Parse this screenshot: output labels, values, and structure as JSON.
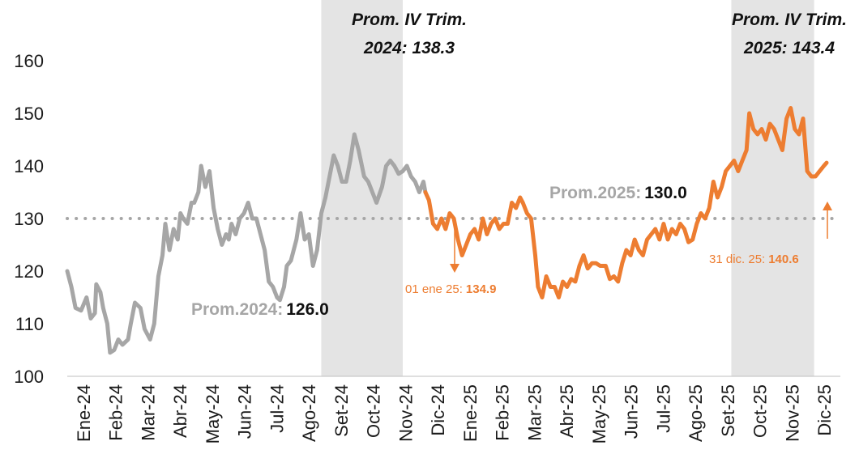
{
  "chart_data": {
    "type": "line",
    "title": "",
    "xlabel": "",
    "ylabel": "",
    "ylim": [
      100,
      160
    ],
    "y_ticks": [
      "100",
      "110",
      "120",
      "130",
      "140",
      "150",
      "160"
    ],
    "x_tick_labels": [
      "Ene-24",
      "Feb-24",
      "Mar-24",
      "Abr-24",
      "May-24",
      "Jun-24",
      "Jul-24",
      "Ago-24",
      "Set-24",
      "Oct-24",
      "Nov-24",
      "Dic-24",
      "Ene-25",
      "Feb-25",
      "Mar-25",
      "Abr-25",
      "May-25",
      "Jun-25",
      "Jul-25",
      "Ago-25",
      "Set-25",
      "Oct-25",
      "Nov-25",
      "Dic-25"
    ],
    "grid": false,
    "colors": {
      "s2024": "#a6a6a6",
      "s2025": "#ed7d31",
      "shade": "#e4e4e4",
      "avg_line": "#a6a6a6"
    },
    "series": [
      {
        "name": "2024",
        "color": "#a6a6a6",
        "points": [
          [
            0,
            120
          ],
          [
            0.15,
            117
          ],
          [
            0.3,
            113
          ],
          [
            0.5,
            112.5
          ],
          [
            0.7,
            115
          ],
          [
            0.85,
            111
          ],
          [
            1.0,
            112
          ],
          [
            1.05,
            117.5
          ],
          [
            1.2,
            116
          ],
          [
            1.3,
            113
          ],
          [
            1.45,
            110
          ],
          [
            1.55,
            104.5
          ],
          [
            1.7,
            105
          ],
          [
            1.85,
            107
          ],
          [
            2.0,
            106
          ],
          [
            2.2,
            107
          ],
          [
            2.3,
            110
          ],
          [
            2.45,
            114
          ],
          [
            2.65,
            113
          ],
          [
            2.8,
            109
          ],
          [
            3.0,
            107
          ],
          [
            3.15,
            110
          ],
          [
            3.3,
            119
          ],
          [
            3.45,
            123
          ],
          [
            3.55,
            129
          ],
          [
            3.7,
            124
          ],
          [
            3.85,
            128
          ],
          [
            4.0,
            126
          ],
          [
            4.1,
            131
          ],
          [
            4.2,
            130
          ],
          [
            4.35,
            129
          ],
          [
            4.5,
            133
          ],
          [
            4.6,
            133
          ],
          [
            4.75,
            135
          ],
          [
            4.85,
            140
          ],
          [
            5.0,
            136
          ],
          [
            5.15,
            139
          ],
          [
            5.3,
            132
          ],
          [
            5.45,
            128
          ],
          [
            5.6,
            125
          ],
          [
            5.75,
            127
          ],
          [
            5.85,
            126
          ],
          [
            5.95,
            129
          ],
          [
            6.1,
            127
          ],
          [
            6.25,
            130
          ],
          [
            6.4,
            131
          ],
          [
            6.55,
            133
          ],
          [
            6.7,
            130
          ],
          [
            6.85,
            130
          ],
          [
            7.0,
            127
          ],
          [
            7.15,
            124
          ],
          [
            7.3,
            118
          ],
          [
            7.45,
            117
          ],
          [
            7.6,
            115
          ],
          [
            7.7,
            114.5
          ],
          [
            7.85,
            117
          ],
          [
            7.95,
            121
          ],
          [
            8.1,
            122
          ],
          [
            8.3,
            126
          ],
          [
            8.45,
            131
          ],
          [
            8.6,
            126
          ],
          [
            8.75,
            127
          ],
          [
            8.9,
            121
          ],
          [
            9.05,
            124
          ],
          [
            9.2,
            131
          ],
          [
            9.35,
            134
          ],
          [
            9.5,
            138
          ],
          [
            9.65,
            142
          ],
          [
            9.8,
            140
          ],
          [
            9.95,
            137
          ],
          [
            10.1,
            137
          ],
          [
            10.25,
            141
          ],
          [
            10.4,
            146
          ],
          [
            10.55,
            143
          ],
          [
            10.75,
            138
          ],
          [
            10.9,
            137
          ],
          [
            11.05,
            135
          ],
          [
            11.2,
            133
          ],
          [
            11.4,
            136
          ],
          [
            11.55,
            140
          ],
          [
            11.7,
            141
          ],
          [
            11.85,
            140
          ],
          [
            12.0,
            138.5
          ],
          [
            12.15,
            139
          ],
          [
            12.3,
            140
          ],
          [
            12.45,
            138
          ],
          [
            12.6,
            137
          ],
          [
            12.75,
            135
          ],
          [
            12.9,
            137
          ],
          [
            12.97,
            135
          ]
        ]
      },
      {
        "name": "2025",
        "color": "#ed7d31",
        "points": [
          [
            12.97,
            135
          ],
          [
            13.1,
            133.5
          ],
          [
            13.25,
            129
          ],
          [
            13.4,
            128
          ],
          [
            13.55,
            130
          ],
          [
            13.7,
            128
          ],
          [
            13.85,
            131
          ],
          [
            14.0,
            130
          ],
          [
            14.15,
            126
          ],
          [
            14.3,
            123
          ],
          [
            14.45,
            125
          ],
          [
            14.6,
            127
          ],
          [
            14.75,
            128
          ],
          [
            14.9,
            126
          ],
          [
            15.05,
            130
          ],
          [
            15.2,
            127
          ],
          [
            15.35,
            129
          ],
          [
            15.5,
            130
          ],
          [
            15.65,
            128
          ],
          [
            15.8,
            129
          ],
          [
            15.95,
            129
          ],
          [
            16.1,
            133
          ],
          [
            16.25,
            132
          ],
          [
            16.4,
            134
          ],
          [
            16.5,
            133
          ],
          [
            16.65,
            131
          ],
          [
            16.8,
            130
          ],
          [
            16.95,
            123
          ],
          [
            17.05,
            117
          ],
          [
            17.2,
            115
          ],
          [
            17.35,
            119
          ],
          [
            17.5,
            117
          ],
          [
            17.65,
            117
          ],
          [
            17.8,
            115
          ],
          [
            17.95,
            118
          ],
          [
            18.1,
            117
          ],
          [
            18.25,
            118.5
          ],
          [
            18.4,
            118
          ],
          [
            18.55,
            121
          ],
          [
            18.7,
            123
          ],
          [
            18.85,
            120.5
          ],
          [
            19.0,
            121.5
          ],
          [
            19.15,
            121.5
          ],
          [
            19.3,
            121
          ],
          [
            19.5,
            121
          ],
          [
            19.65,
            118.5
          ],
          [
            19.8,
            119
          ],
          [
            19.95,
            118
          ],
          [
            20.1,
            121.5
          ],
          [
            20.25,
            124
          ],
          [
            20.4,
            123
          ],
          [
            20.55,
            126
          ],
          [
            20.7,
            124
          ],
          [
            20.85,
            123
          ],
          [
            21.0,
            126
          ],
          [
            21.15,
            127
          ],
          [
            21.3,
            128
          ],
          [
            21.45,
            126
          ],
          [
            21.6,
            129
          ],
          [
            21.75,
            126
          ],
          [
            21.9,
            128
          ],
          [
            22.05,
            127
          ],
          [
            22.2,
            129
          ],
          [
            22.35,
            128
          ],
          [
            22.5,
            125.5
          ],
          [
            22.65,
            126
          ],
          [
            22.8,
            129
          ],
          [
            22.95,
            131
          ],
          [
            23.1,
            130
          ],
          [
            23.25,
            132
          ],
          [
            23.4,
            137
          ],
          [
            23.55,
            134
          ],
          [
            23.7,
            136
          ],
          [
            23.85,
            139
          ],
          [
            24.0,
            140
          ],
          [
            24.15,
            141
          ],
          [
            24.3,
            139
          ],
          [
            24.45,
            141
          ],
          [
            24.6,
            143
          ],
          [
            24.7,
            150
          ],
          [
            24.85,
            147
          ],
          [
            25.0,
            146
          ],
          [
            25.15,
            147
          ],
          [
            25.3,
            145
          ],
          [
            25.45,
            148
          ],
          [
            25.6,
            147
          ],
          [
            25.75,
            145
          ],
          [
            25.9,
            143
          ],
          [
            26.05,
            149
          ],
          [
            26.2,
            151
          ],
          [
            26.35,
            147
          ],
          [
            26.5,
            146
          ],
          [
            26.65,
            149
          ],
          [
            26.8,
            139
          ],
          [
            26.95,
            138
          ],
          [
            27.1,
            138
          ],
          [
            27.25,
            139
          ],
          [
            27.4,
            140
          ],
          [
            27.5,
            140.6
          ]
        ]
      }
    ],
    "avg_line": {
      "value": 130
    },
    "shaded_periods": [
      {
        "x_start": 9.2,
        "x_end": 12.15
      },
      {
        "x_start": 24.05,
        "x_end": 27.05
      }
    ],
    "annotations": {
      "q4_2024_line1": "Prom. IV Trim.",
      "q4_2024_line2": "2024: 138.3",
      "q4_2025_line1": "Prom. IV Trim.",
      "q4_2025_line2": "2025: 143.4",
      "avg2024_label": "Prom.2024:",
      "avg2024_value": "126.0",
      "avg2025_label": "Prom.2025:",
      "avg2025_value": "130.0",
      "first_day_label": "01 ene 25:",
      "first_day_value": "134.9",
      "last_day_label": "31 dic. 25:",
      "last_day_value": "140.6"
    }
  }
}
